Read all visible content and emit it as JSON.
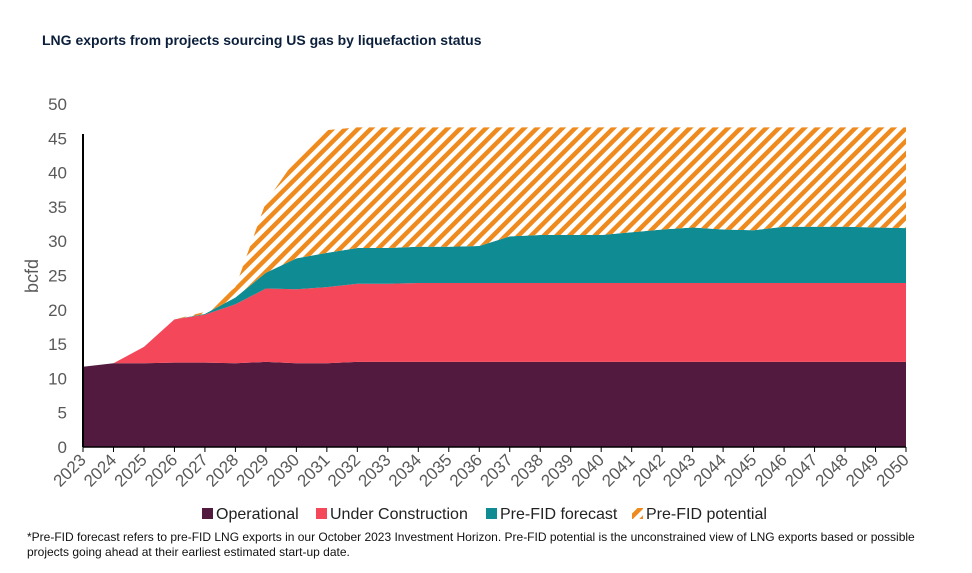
{
  "title": "LNG exports from projects sourcing US gas by liquefaction status",
  "footnote": "*Pre-FID forecast refers to pre-FID LNG exports in our October 2023 Investment Horizon. Pre-FID potential is the unconstrained view of LNG exports based or possible projects going ahead at their earliest estimated start-up date.",
  "chart_data": {
    "type": "area",
    "stacked": true,
    "ylabel": "bcfd",
    "xlabel": "",
    "ylim": [
      0,
      50
    ],
    "yticks": [
      0,
      5,
      10,
      15,
      20,
      25,
      30,
      35,
      40,
      45,
      50
    ],
    "legend_position": "bottom",
    "categories": [
      "2023",
      "2024",
      "2025",
      "2026",
      "2027",
      "2028",
      "2029",
      "2030",
      "2031",
      "2032",
      "2033",
      "2034",
      "2035",
      "2036",
      "2037",
      "2038",
      "2039",
      "2040",
      "2041",
      "2042",
      "2043",
      "2044",
      "2045",
      "2046",
      "2047",
      "2048",
      "2049",
      "2050"
    ],
    "series": [
      {
        "name": "Operational",
        "color": "#521a3e",
        "values": [
          11.7,
          12.2,
          12.2,
          12.3,
          12.3,
          12.2,
          12.4,
          12.2,
          12.2,
          12.4,
          12.4,
          12.4,
          12.4,
          12.4,
          12.4,
          12.4,
          12.4,
          12.4,
          12.4,
          12.4,
          12.4,
          12.4,
          12.4,
          12.4,
          12.4,
          12.4,
          12.4,
          12.4
        ]
      },
      {
        "name": "Under Construction",
        "color": "#f4475a",
        "values": [
          0,
          0,
          2.4,
          6.3,
          7.0,
          8.6,
          10.7,
          10.8,
          11.1,
          11.4,
          11.4,
          11.5,
          11.5,
          11.5,
          11.5,
          11.5,
          11.5,
          11.5,
          11.5,
          11.5,
          11.5,
          11.5,
          11.5,
          11.5,
          11.5,
          11.5,
          11.5,
          11.5
        ]
      },
      {
        "name": "Pre-FID forecast",
        "color": "#0e8b93",
        "values": [
          0,
          0,
          0,
          0,
          0.1,
          1.0,
          2.3,
          4.5,
          5.0,
          5.2,
          5.2,
          5.3,
          5.3,
          5.4,
          6.8,
          7.0,
          7.0,
          7.0,
          7.4,
          7.8,
          8.1,
          7.8,
          7.7,
          8.2,
          8.2,
          8.2,
          8.1,
          8.0
        ]
      },
      {
        "name": "Pre-FID potential",
        "color": "#ef8b1e",
        "pattern": "hatched",
        "values": [
          0,
          0,
          0,
          0,
          0.3,
          1.5,
          10.3,
          14.6,
          17.9,
          17.6,
          17.6,
          17.4,
          17.4,
          17.3,
          15.9,
          15.7,
          15.7,
          15.7,
          15.3,
          14.9,
          14.6,
          14.9,
          15.0,
          14.5,
          14.5,
          14.5,
          14.6,
          14.7
        ]
      }
    ]
  }
}
